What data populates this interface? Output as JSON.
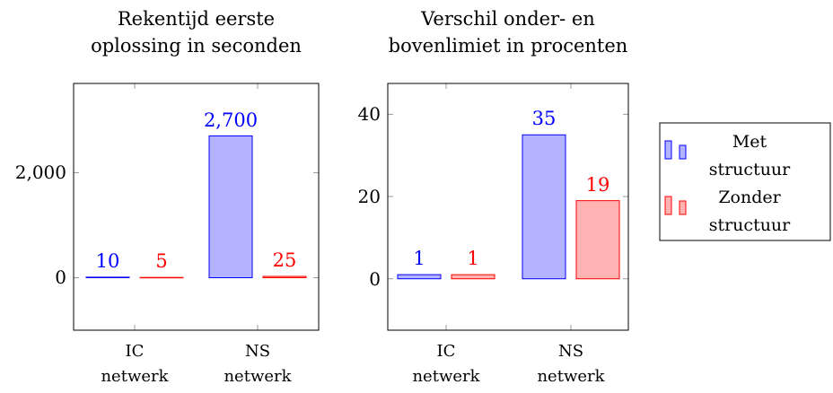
{
  "chart_data": [
    {
      "type": "bar",
      "title": "Rekentijd eerste oplossing in seconden",
      "categories": [
        "IC netwerk",
        "NS netwerk"
      ],
      "series": [
        {
          "name": "Met structuur",
          "color": "#0000ff",
          "fill": "#b3b3ff",
          "values": [
            10,
            2700
          ],
          "value_labels": [
            "10",
            "2,700"
          ]
        },
        {
          "name": "Zonder structuur",
          "color": "#ff0000",
          "fill": "#ffb3b3",
          "values": [
            5,
            25
          ]
        }
      ],
      "ylim": [
        -1000,
        3700
      ],
      "yticks": [
        0,
        {
          "value": 2000,
          "label": "2,000"
        }
      ]
    },
    {
      "type": "bar",
      "title": "Verschil onder- en bovenlimiet in procenten",
      "categories": [
        "IC netwerk",
        "NS netwerk"
      ],
      "series": [
        {
          "name": "Met structuur",
          "color": "#0000ff",
          "fill": "#b3b3ff",
          "values": [
            1,
            35
          ]
        },
        {
          "name": "Zonder structuur",
          "color": "#ff0000",
          "fill": "#ffb3b3",
          "values": [
            1,
            19
          ]
        }
      ],
      "ylim": [
        -12.5,
        47.5
      ],
      "yticks": [
        0,
        20,
        40
      ]
    }
  ]
}
